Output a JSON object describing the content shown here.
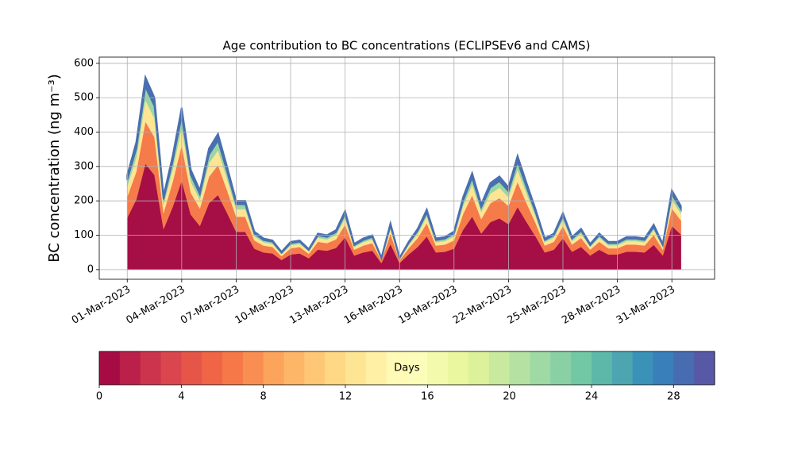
{
  "chart_data": {
    "type": "stacked_area",
    "title": "Age contribution to BC concentrations (ECLIPSEv6 and CAMS)",
    "y_label": "BC concentration (ng m⁻³)",
    "x": [
      "2023-03-01T00:00",
      "2023-03-01T12:00",
      "2023-03-02T00:00",
      "2023-03-02T12:00",
      "2023-03-03T00:00",
      "2023-03-03T12:00",
      "2023-03-04T00:00",
      "2023-03-04T12:00",
      "2023-03-05T00:00",
      "2023-03-05T12:00",
      "2023-03-06T00:00",
      "2023-03-06T12:00",
      "2023-03-07T00:00",
      "2023-03-07T12:00",
      "2023-03-08T00:00",
      "2023-03-08T12:00",
      "2023-03-09T00:00",
      "2023-03-09T12:00",
      "2023-03-10T00:00",
      "2023-03-10T12:00",
      "2023-03-11T00:00",
      "2023-03-11T12:00",
      "2023-03-12T00:00",
      "2023-03-12T12:00",
      "2023-03-13T00:00",
      "2023-03-13T12:00",
      "2023-03-14T00:00",
      "2023-03-14T12:00",
      "2023-03-15T00:00",
      "2023-03-15T12:00",
      "2023-03-16T00:00",
      "2023-03-16T12:00",
      "2023-03-17T00:00",
      "2023-03-17T12:00",
      "2023-03-18T00:00",
      "2023-03-18T12:00",
      "2023-03-19T00:00",
      "2023-03-19T12:00",
      "2023-03-20T00:00",
      "2023-03-20T12:00",
      "2023-03-21T00:00",
      "2023-03-21T12:00",
      "2023-03-22T00:00",
      "2023-03-22T12:00",
      "2023-03-23T00:00",
      "2023-03-23T12:00",
      "2023-03-24T00:00",
      "2023-03-24T12:00",
      "2023-03-25T00:00",
      "2023-03-25T12:00",
      "2023-03-26T00:00",
      "2023-03-26T12:00",
      "2023-03-27T00:00",
      "2023-03-27T12:00",
      "2023-03-28T00:00",
      "2023-03-28T12:00",
      "2023-03-29T00:00",
      "2023-03-29T12:00",
      "2023-03-30T00:00",
      "2023-03-30T12:00",
      "2023-03-31T00:00",
      "2023-03-31T12:00"
    ],
    "series": [
      {
        "color": "#a50f45",
        "values": [
          151,
          204,
          308,
          275,
          118,
          182,
          259,
          160,
          127,
          193,
          217,
          165,
          110,
          110,
          61,
          50,
          47,
          28,
          44,
          47,
          33,
          58,
          55,
          63,
          94,
          41,
          50,
          55,
          19,
          74,
          19,
          44,
          66,
          96,
          50,
          52,
          61,
          116,
          154,
          105,
          138,
          149,
          132,
          182,
          138,
          96,
          50,
          58,
          91,
          52,
          66,
          41,
          58,
          44,
          44,
          52,
          52,
          50,
          72,
          41,
          127,
          102
        ]
      },
      {
        "color": "#f67b4a",
        "values": [
          61,
          81,
          123,
          110,
          47,
          73,
          103,
          64,
          51,
          77,
          87,
          66,
          44,
          44,
          24,
          20,
          19,
          11,
          18,
          19,
          13,
          23,
          22,
          25,
          37,
          17,
          20,
          22,
          8,
          30,
          8,
          18,
          26,
          39,
          20,
          21,
          24,
          46,
          62,
          42,
          55,
          59,
          53,
          73,
          55,
          39,
          20,
          23,
          36,
          21,
          26,
          17,
          23,
          18,
          18,
          21,
          21,
          20,
          29,
          17,
          51,
          41
        ]
      },
      {
        "color": "#fee593",
        "values": [
          30,
          41,
          62,
          55,
          24,
          36,
          52,
          32,
          25,
          39,
          43,
          33,
          22,
          22,
          12,
          10,
          9,
          6,
          9,
          9,
          7,
          12,
          11,
          13,
          19,
          8,
          10,
          11,
          4,
          15,
          4,
          9,
          13,
          19,
          10,
          10,
          12,
          23,
          31,
          21,
          28,
          30,
          26,
          36,
          28,
          19,
          10,
          12,
          18,
          10,
          13,
          8,
          12,
          9,
          9,
          10,
          10,
          10,
          14,
          8,
          25,
          20
        ]
      },
      {
        "color": "#9ad6a4",
        "values": [
          19,
          26,
          39,
          35,
          15,
          23,
          33,
          20,
          16,
          25,
          28,
          21,
          14,
          14,
          8,
          6,
          6,
          4,
          6,
          6,
          4,
          7,
          7,
          8,
          12,
          5,
          6,
          7,
          2,
          9,
          2,
          6,
          8,
          12,
          6,
          7,
          8,
          15,
          20,
          13,
          18,
          19,
          17,
          23,
          18,
          12,
          6,
          7,
          12,
          7,
          8,
          5,
          7,
          6,
          6,
          7,
          7,
          6,
          9,
          5,
          16,
          13
        ]
      },
      {
        "color": "#4a6fb0",
        "values": [
          14,
          19,
          28,
          25,
          11,
          17,
          24,
          15,
          12,
          18,
          20,
          15,
          10,
          10,
          6,
          5,
          4,
          3,
          4,
          4,
          3,
          5,
          5,
          6,
          9,
          4,
          5,
          5,
          2,
          7,
          2,
          4,
          6,
          9,
          5,
          5,
          6,
          11,
          14,
          10,
          13,
          14,
          12,
          17,
          13,
          9,
          5,
          5,
          8,
          5,
          6,
          4,
          5,
          4,
          4,
          5,
          5,
          5,
          7,
          4,
          12,
          9
        ]
      }
    ],
    "xlim": [
      "2023-02-27T11:00",
      "2023-04-02T08:30"
    ],
    "xticks": [
      {
        "value": "2023-03-01T00:00",
        "label": "01-Mar-2023"
      },
      {
        "value": "2023-03-04T00:00",
        "label": "04-Mar-2023"
      },
      {
        "value": "2023-03-07T00:00",
        "label": "07-Mar-2023"
      },
      {
        "value": "2023-03-10T00:00",
        "label": "10-Mar-2023"
      },
      {
        "value": "2023-03-13T00:00",
        "label": "13-Mar-2023"
      },
      {
        "value": "2023-03-16T00:00",
        "label": "16-Mar-2023"
      },
      {
        "value": "2023-03-19T00:00",
        "label": "19-Mar-2023"
      },
      {
        "value": "2023-03-22T00:00",
        "label": "22-Mar-2023"
      },
      {
        "value": "2023-03-25T00:00",
        "label": "25-Mar-2023"
      },
      {
        "value": "2023-03-28T00:00",
        "label": "28-Mar-2023"
      },
      {
        "value": "2023-03-31T00:00",
        "label": "31-Mar-2023"
      }
    ],
    "ylim": [
      -28,
      618
    ],
    "yticks": [
      0,
      100,
      200,
      300,
      400,
      500,
      600
    ],
    "grid": true,
    "colorbar": {
      "label": "Days",
      "lim": [
        0,
        30
      ],
      "ticks": [
        0,
        4,
        8,
        12,
        16,
        20,
        24,
        28
      ],
      "cmap": [
        "#9e0142",
        "#d53e4f",
        "#f46d43",
        "#fdae61",
        "#fee08b",
        "#ffffbf",
        "#e6f598",
        "#abdda4",
        "#66c2a5",
        "#3288bd",
        "#5e4fa2"
      ]
    }
  }
}
